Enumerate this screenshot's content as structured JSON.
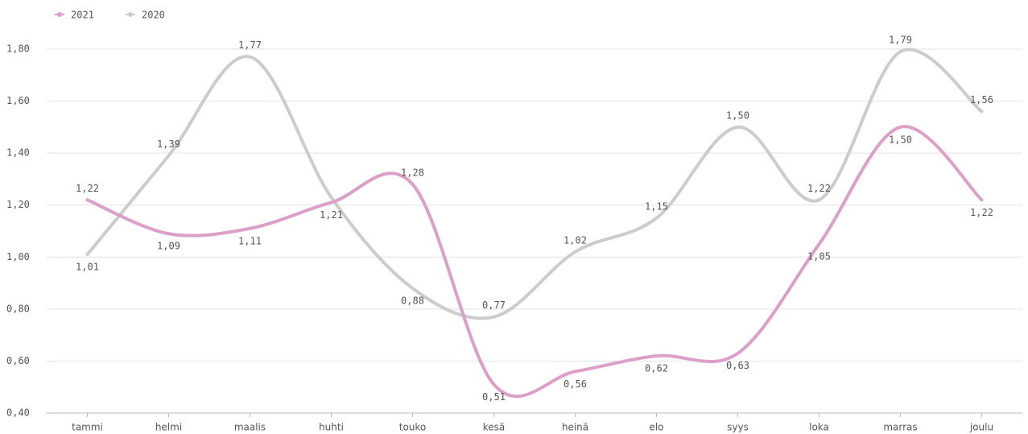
{
  "chart_data": {
    "type": "line",
    "categories": [
      "tammi",
      "helmi",
      "maalis",
      "huhti",
      "touko",
      "kesä",
      "heinä",
      "elo",
      "syys",
      "loka",
      "marras",
      "joulu"
    ],
    "series": [
      {
        "name": "2021",
        "color": "#dd9fc8",
        "values": [
          1.22,
          1.09,
          1.11,
          1.21,
          1.28,
          0.51,
          0.56,
          0.62,
          0.63,
          1.05,
          1.5,
          1.22
        ],
        "value_labels": [
          "1,22",
          "1,09",
          "1,11",
          "1,21",
          "1,28",
          "0,51",
          "0,56",
          "0,62",
          "0,63",
          "1,05",
          "1,50",
          "1,22"
        ]
      },
      {
        "name": "2020",
        "color": "#cccccc",
        "values": [
          1.01,
          1.39,
          1.77,
          1.23,
          0.88,
          0.77,
          1.02,
          1.15,
          1.5,
          1.22,
          1.79,
          1.56
        ],
        "value_labels": [
          "1,01",
          "1,39",
          "1,77",
          null,
          "0,88",
          "0,77",
          "1,02",
          "1,15",
          "1,50",
          "1,22",
          "1,79",
          "1,56"
        ]
      }
    ],
    "ylim": [
      0.4,
      1.8
    ],
    "yticks": [
      {
        "value": 0.4,
        "label": "0,40"
      },
      {
        "value": 0.6,
        "label": "0,60"
      },
      {
        "value": 0.8,
        "label": "0,80"
      },
      {
        "value": 1.0,
        "label": "1,00"
      },
      {
        "value": 1.2,
        "label": "1,20"
      },
      {
        "value": 1.4,
        "label": "1,40"
      },
      {
        "value": 1.6,
        "label": "1,60"
      },
      {
        "value": 1.8,
        "label": "1,80"
      }
    ],
    "grid": true,
    "legend": "top-left"
  }
}
